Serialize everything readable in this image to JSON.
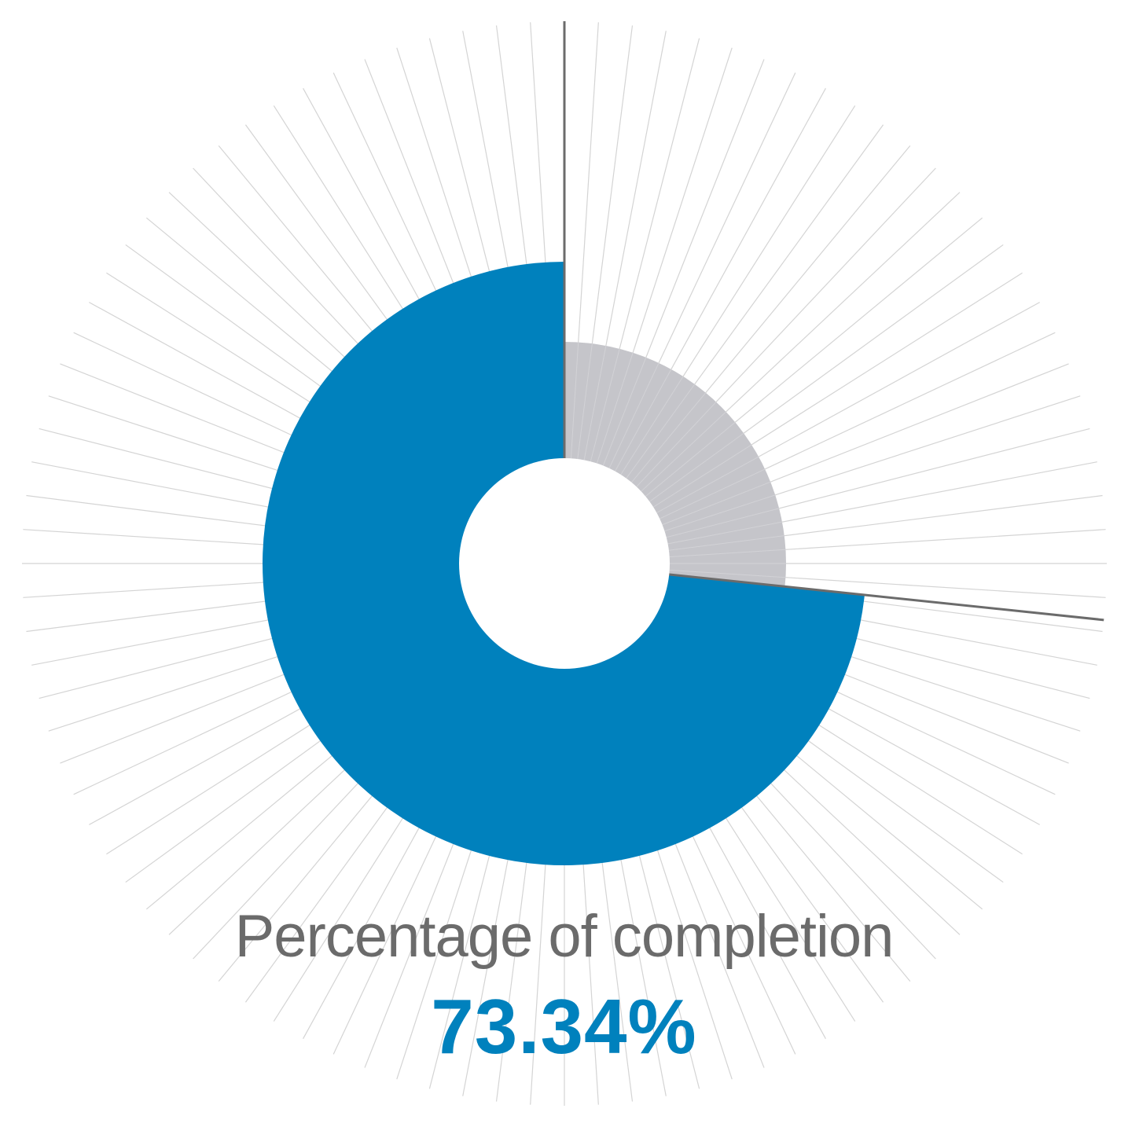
{
  "chart_data": {
    "type": "pie",
    "variant": "donut",
    "slices": [
      {
        "label": "",
        "value": 73.34,
        "color": "#0081bd"
      },
      {
        "label": "",
        "value": 26.66,
        "color": "#c5c5ca"
      }
    ],
    "title": "",
    "caption_label": "Percentage of completion",
    "caption_value": "73.34%",
    "label_color": "#6b6b6b",
    "value_color": "#0081bd",
    "sunburst_line_color": "#d4d4d4",
    "boundary_line_color": "#6b6b6b"
  }
}
